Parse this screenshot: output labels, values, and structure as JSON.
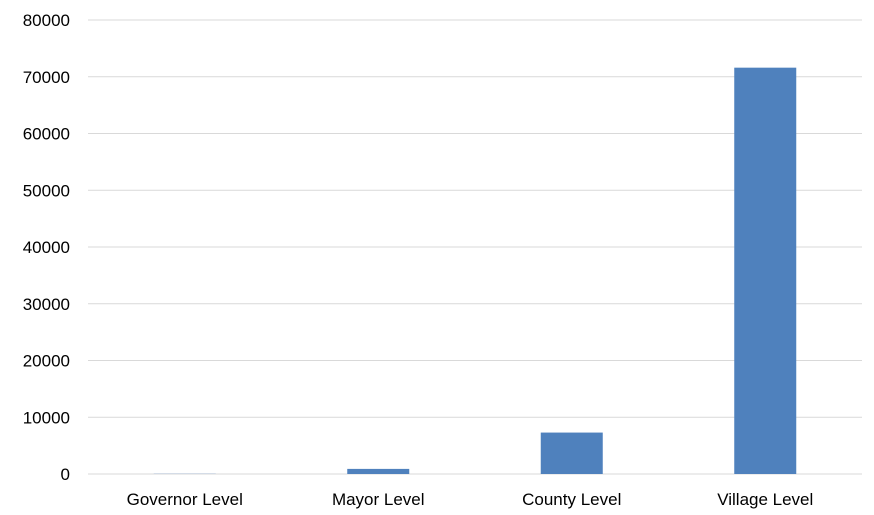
{
  "chart_data": {
    "type": "bar",
    "title": "",
    "xlabel": "",
    "ylabel": "",
    "categories": [
      "Governor Level",
      "Mayor Level",
      "County Level",
      "Village Level"
    ],
    "values": [
      31,
      900,
      7300,
      71600
    ],
    "ylim": [
      0,
      80000
    ],
    "yticks": [
      "0",
      "10000",
      "20000",
      "30000",
      "40000",
      "50000",
      "60000",
      "70000",
      "80000"
    ],
    "ytick_values": [
      0,
      10000,
      20000,
      30000,
      40000,
      50000,
      60000,
      70000,
      80000
    ],
    "grid": true,
    "legend": "none",
    "bar_color": "#4f81bd",
    "grid_color": "#d9d9d9"
  }
}
